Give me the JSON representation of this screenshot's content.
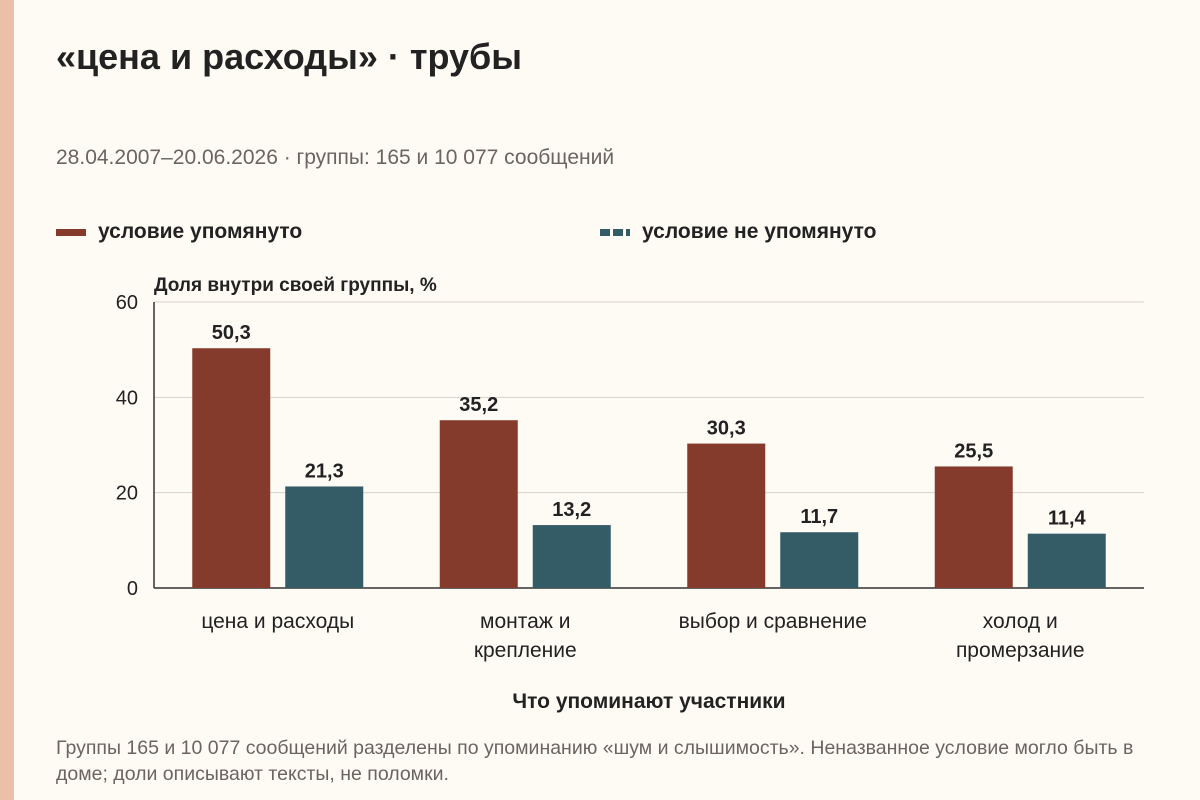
{
  "title": "«цена и расходы» · трубы",
  "subtitle": "28.04.2007–20.06.2026 · группы: 165 и 10 077 сообщений",
  "colors": {
    "background": "#fdfbf4",
    "accent_strip": "#ecc0a8",
    "mentioned": "#853b2c",
    "not_mentioned": "#335c67",
    "text": "#222222",
    "muted_text": "#6b6460",
    "grid": "#d6d1c8",
    "axis": "#333333"
  },
  "legend": [
    {
      "label": "условие упомянуто",
      "style": "solid",
      "color": "#853b2c"
    },
    {
      "label": "условие не упомянуто",
      "style": "dashed",
      "color": "#335c67"
    }
  ],
  "chart_data": {
    "type": "bar",
    "ylabel": "Доля внутри своей группы, %",
    "xlabel": "Что упоминают участники",
    "ylim": [
      0,
      60
    ],
    "yticks": [
      "0",
      "20",
      "40",
      "60"
    ],
    "grid": true,
    "legend_position": "top",
    "categories": [
      [
        "цена и расходы"
      ],
      [
        "монтаж и",
        "крепление"
      ],
      [
        "выбор и сравнение"
      ],
      [
        "холод и",
        "промерзание"
      ]
    ],
    "series": [
      {
        "name": "условие упомянуто",
        "color": "#853b2c",
        "values": [
          50.3,
          35.2,
          30.3,
          25.5
        ],
        "labels": [
          "50,3",
          "35,2",
          "30,3",
          "25,5"
        ]
      },
      {
        "name": "условие не упомянуто",
        "color": "#335c67",
        "values": [
          21.3,
          13.2,
          11.7,
          11.4
        ],
        "labels": [
          "21,3",
          "13,2",
          "11,7",
          "11,4"
        ]
      }
    ]
  },
  "footnote": "Группы 165 и 10 077 сообщений разделены по упоминанию «шум и слышимость». Неназванное условие могло быть в доме; доли описывают тексты, не поломки."
}
